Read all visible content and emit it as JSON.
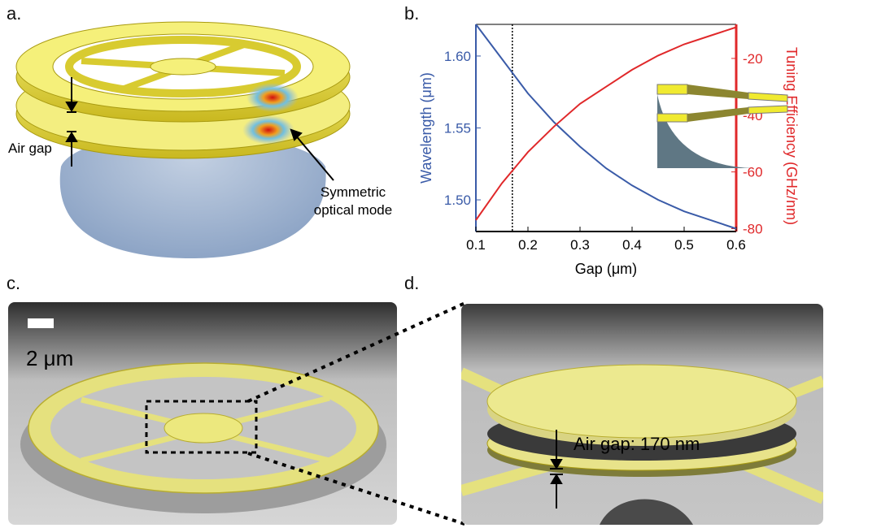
{
  "panels": {
    "a": {
      "label": "a.",
      "annotations": {
        "air_gap": "Air gap",
        "mode_line1": "Symmetric",
        "mode_line2": "optical mode"
      }
    },
    "b": {
      "label": "b."
    },
    "c": {
      "label": "c.",
      "scale_bar": "2 μm"
    },
    "d": {
      "label": "d.",
      "air_gap_label": "Air gap: 170 nm"
    }
  },
  "chart_data": {
    "type": "line",
    "xlabel": "Gap (μm)",
    "ylabel_left": "Wavelength (μm)",
    "ylabel_right": "Tuning Efficiency (GHz/nm)",
    "xlim": [
      0.1,
      0.6
    ],
    "ylim_left": [
      1.478,
      1.622
    ],
    "ylim_right": [
      -81,
      -8
    ],
    "x_ticks": [
      "0.1",
      "0.2",
      "0.3",
      "0.4",
      "0.5",
      "0.6"
    ],
    "y_ticks_left": [
      "1.50",
      "1.55",
      "1.60"
    ],
    "y_ticks_right": [
      "-80",
      "-60",
      "-40",
      "-20"
    ],
    "vertical_marker_x": 0.17,
    "series": [
      {
        "axis": "left",
        "color": "#3a5ba8",
        "x": [
          0.1,
          0.15,
          0.2,
          0.25,
          0.3,
          0.35,
          0.4,
          0.45,
          0.5,
          0.55,
          0.6
        ],
        "y": [
          1.625,
          1.598,
          1.574,
          1.554,
          1.537,
          1.522,
          1.51,
          1.5,
          1.492,
          1.486,
          1.48
        ]
      },
      {
        "axis": "right",
        "color": "#e0282a",
        "x": [
          0.1,
          0.15,
          0.2,
          0.25,
          0.3,
          0.35,
          0.4,
          0.45,
          0.5,
          0.55,
          0.6
        ],
        "y": [
          -77,
          -64,
          -53,
          -44,
          -36,
          -30,
          -24,
          -19,
          -15,
          -12,
          -9
        ]
      }
    ],
    "grid": false,
    "colors": {
      "left_axis": "#3a5ba8",
      "right_axis": "#e0282a"
    }
  }
}
